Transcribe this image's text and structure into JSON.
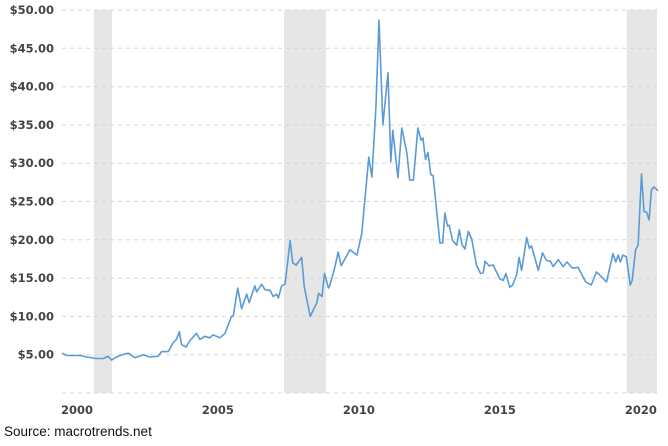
{
  "chart_data": {
    "type": "line",
    "title": "",
    "xlabel": "",
    "ylabel": "",
    "xlim": [
      1999.47,
      2020.57
    ],
    "ylim": [
      0,
      50
    ],
    "grid": true,
    "y_ticks": [
      5,
      10,
      15,
      20,
      25,
      30,
      35,
      40,
      45,
      50
    ],
    "y_tick_labels": [
      "$5.00",
      "$10.00",
      "$15.00",
      "$20.00",
      "$25.00",
      "$30.00",
      "$35.00",
      "$40.00",
      "$45.00",
      "$50.00"
    ],
    "x_ticks": [
      2000,
      2005,
      2010,
      2015,
      2020
    ],
    "x_tick_labels": [
      "2000",
      "2005",
      "2010",
      "2015",
      "2020"
    ],
    "line_color": "#5b9bd5",
    "shade_color": "#e6e6e6",
    "shaded_periods": [
      [
        2000.6,
        2001.24
      ],
      [
        2007.34,
        2008.83
      ],
      [
        2019.5,
        2020.57
      ]
    ],
    "series": [
      {
        "x": [
          1999.47,
          1999.65,
          2000.12,
          2000.36,
          2000.66,
          2000.95,
          2001.1,
          2001.23,
          2001.4,
          2001.7,
          2001.82,
          2002.06,
          2002.35,
          2002.59,
          2002.88,
          2003.0,
          2003.24,
          2003.42,
          2003.53,
          2003.63,
          2003.71,
          2003.87,
          2004.0,
          2004.24,
          2004.36,
          2004.53,
          2004.71,
          2004.83,
          2005.07,
          2005.25,
          2005.48,
          2005.54,
          2005.7,
          2005.84,
          2006.02,
          2006.11,
          2006.31,
          2006.37,
          2006.55,
          2006.67,
          2006.85,
          2006.96,
          2007.08,
          2007.14,
          2007.26,
          2007.38,
          2007.56,
          2007.65,
          2007.77,
          2007.97,
          2008.06,
          2008.27,
          2008.51,
          2008.57,
          2008.69,
          2008.78,
          2008.92,
          2008.97,
          2009.15,
          2009.26,
          2009.37,
          2009.68,
          2009.93,
          2010.1,
          2010.35,
          2010.46,
          2010.6,
          2010.71,
          2010.85,
          2011.03,
          2011.13,
          2011.2,
          2011.38,
          2011.52,
          2011.7,
          2011.8,
          2011.93,
          2012.09,
          2012.2,
          2012.27,
          2012.36,
          2012.45,
          2012.55,
          2012.63,
          2012.87,
          2012.97,
          2013.05,
          2013.14,
          2013.2,
          2013.32,
          2013.47,
          2013.56,
          2013.65,
          2013.76,
          2013.88,
          2014.0,
          2014.17,
          2014.31,
          2014.41,
          2014.47,
          2014.62,
          2014.76,
          2015.0,
          2015.12,
          2015.21,
          2015.35,
          2015.45,
          2015.59,
          2015.68,
          2015.77,
          2015.95,
          2016.04,
          2016.12,
          2016.36,
          2016.51,
          2016.65,
          2016.79,
          2016.89,
          2017.07,
          2017.24,
          2017.38,
          2017.57,
          2017.77,
          2018.04,
          2018.24,
          2018.42,
          2018.6,
          2018.78,
          2019.01,
          2019.11,
          2019.19,
          2019.27,
          2019.36,
          2019.48,
          2019.62,
          2019.69,
          2019.81,
          2019.9,
          2020.02,
          2020.11,
          2020.2,
          2020.29,
          2020.37,
          2020.46,
          2020.61
        ],
        "y": [
          5.2,
          4.9,
          4.9,
          4.7,
          4.5,
          4.5,
          4.8,
          4.3,
          4.7,
          5.1,
          5.2,
          4.6,
          5.0,
          4.7,
          4.8,
          5.4,
          5.4,
          6.6,
          7.0,
          8.0,
          6.3,
          6.0,
          6.8,
          7.8,
          7.0,
          7.4,
          7.2,
          7.6,
          7.2,
          7.8,
          10.0,
          10.0,
          13.7,
          11.0,
          12.9,
          11.8,
          14.0,
          13.2,
          14.2,
          13.5,
          13.4,
          12.6,
          12.9,
          12.4,
          14.0,
          14.2,
          19.9,
          17.0,
          16.7,
          17.7,
          13.9,
          10.0,
          11.8,
          13.0,
          12.6,
          15.6,
          13.7,
          14.1,
          16.5,
          18.4,
          16.6,
          18.7,
          18.0,
          20.9,
          30.8,
          28.2,
          37.3,
          48.7,
          35.0,
          41.8,
          30.2,
          34.3,
          28.1,
          34.6,
          31.3,
          27.8,
          27.8,
          34.6,
          33.0,
          33.3,
          30.5,
          31.4,
          28.5,
          28.4,
          19.6,
          19.6,
          23.5,
          21.8,
          21.9,
          19.9,
          19.3,
          21.3,
          19.4,
          18.8,
          21.1,
          20.1,
          16.7,
          15.6,
          15.7,
          17.2,
          16.6,
          16.7,
          14.9,
          14.7,
          15.6,
          13.8,
          14.1,
          15.4,
          17.7,
          16.0,
          20.3,
          18.9,
          19.2,
          16.0,
          18.3,
          17.3,
          17.2,
          16.5,
          17.4,
          16.5,
          17.1,
          16.3,
          16.4,
          14.5,
          14.1,
          15.8,
          15.2,
          14.5,
          18.2,
          17.1,
          18.0,
          17.1,
          18.0,
          17.8,
          14.1,
          14.7,
          18.7,
          19.3,
          28.6,
          23.7,
          23.6,
          22.6,
          26.5,
          26.9,
          26.4
        ]
      }
    ]
  },
  "source": "Source: macrotrends.net"
}
